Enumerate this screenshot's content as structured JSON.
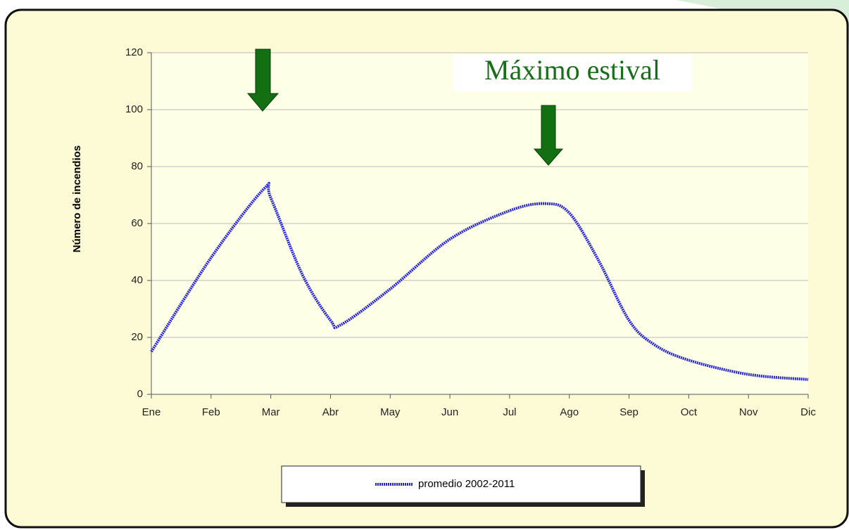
{
  "chart_data": {
    "type": "line",
    "y_label": "Número de incendios",
    "annotation": "Máximo estival",
    "x": [
      0,
      1,
      1.89,
      2,
      2.53,
      3,
      3.18,
      4,
      5,
      6,
      6.6,
      7,
      7.49,
      8,
      8.42,
      9,
      10,
      11
    ],
    "series": [
      {
        "name": "promedio 2002-2011",
        "color": "#2424e0",
        "values": [
          15,
          48,
          72.3,
          69,
          42,
          26,
          24.5,
          37,
          54.5,
          64.5,
          67,
          63.7,
          47,
          26,
          17.5,
          12,
          7,
          5.2
        ]
      }
    ],
    "xlim": [
      0,
      11
    ],
    "xticks": [
      {
        "value": 0,
        "label": "Ene"
      },
      {
        "value": 1,
        "label": "Feb"
      },
      {
        "value": 2,
        "label": "Mar"
      },
      {
        "value": 3,
        "label": "Abr"
      },
      {
        "value": 4,
        "label": "May"
      },
      {
        "value": 5,
        "label": "Jun"
      },
      {
        "value": 6,
        "label": "Jul"
      },
      {
        "value": 7,
        "label": "Ago"
      },
      {
        "value": 8,
        "label": "Sep"
      },
      {
        "value": 9,
        "label": "Oct"
      },
      {
        "value": 10,
        "label": "Nov"
      },
      {
        "value": 11,
        "label": "Dic"
      }
    ],
    "ylim": [
      0,
      120
    ],
    "yticks": [
      0,
      20,
      40,
      60,
      80,
      100,
      120
    ],
    "grid": true
  }
}
